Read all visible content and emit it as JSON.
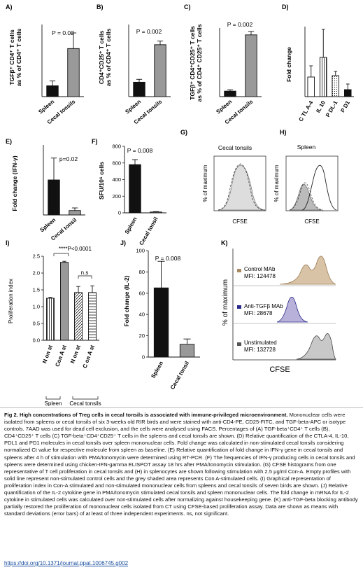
{
  "figure": {
    "panels": {
      "A": {
        "label": "A)",
        "ylabel_line1": "TGFβ⁺ CD4⁺ T cells",
        "ylabel_line2": "as % of CD4⁺ T cells",
        "pvalue": "P = 0.02"
      },
      "B": {
        "label": "B)",
        "ylabel_line1": "CD4⁺CD25⁺ T cells",
        "ylabel_line2": "as % of CD4⁺ T cells",
        "pvalue": "P = 0.002"
      },
      "C": {
        "label": "C)",
        "ylabel_line1": "TGFβ⁺ CD4⁺CD25⁺ T cells",
        "ylabel_line2": "as % of CD4⁺ CD25⁺ T cells",
        "pvalue": "P = 0.002"
      },
      "D": {
        "label": "D)",
        "ylabel": "Fold change"
      },
      "E": {
        "label": "E)",
        "ylabel": "Fold change (IFN-γ)",
        "pvalue": "p=0.02"
      },
      "F": {
        "label": "F)",
        "ylabel": "SFU/10⁶ cells",
        "pvalue": "P = 0.008"
      },
      "G": {
        "label": "G)",
        "title": "Cecal tonsils",
        "ylabel": "% of maximum",
        "xlabel": "CFSE"
      },
      "H": {
        "label": "H)",
        "title": "Spleen",
        "ylabel": "% of maximum",
        "xlabel": "CFSE"
      },
      "I": {
        "label": "I)",
        "ylabel": "Proliferation index",
        "sig1": "****P<0.0001",
        "sig2": "n.s",
        "group1": "Spleen",
        "group2": "Cecal tonsils"
      },
      "J": {
        "label": "J)",
        "ylabel": "Fold change (IL-2)",
        "pvalue": "P = 0.008"
      },
      "K": {
        "label": "K)",
        "ylabel": "% of maximum",
        "xlabel": "CFSE",
        "legend": [
          {
            "name": "Control MAb",
            "mfi": "MFI: 124478",
            "color": "#a88a62"
          },
          {
            "name": "Anti-TGFβ MAb",
            "mfi": "MFI: 28678",
            "color": "#2a2a8a"
          },
          {
            "name": "Unstimulated",
            "mfi": "MFI: 132728",
            "color": "#444444"
          }
        ]
      }
    }
  },
  "chart_data": [
    {
      "panel": "A",
      "type": "bar",
      "categories": [
        "Spleen",
        "Cecal tonsils"
      ],
      "values": [
        9,
        40
      ],
      "errors": [
        4,
        13
      ],
      "ylim": [
        0,
        60
      ]
    },
    {
      "panel": "B",
      "type": "bar",
      "categories": [
        "Spleen",
        "Cecal tonsils"
      ],
      "values": [
        20,
        72
      ],
      "errors": [
        4,
        5
      ],
      "ylim": [
        0,
        100
      ]
    },
    {
      "panel": "C",
      "type": "bar",
      "categories": [
        "Spleen",
        "Cecal tonsils"
      ],
      "values": [
        8,
        90
      ],
      "errors": [
        2,
        5
      ],
      "ylim": [
        0,
        100
      ]
    },
    {
      "panel": "D",
      "type": "bar",
      "categories": [
        "C TL A-4",
        "IL 10",
        "P DL-1",
        "P D1"
      ],
      "values": [
        1.4,
        2.8,
        1.5,
        0.5
      ],
      "errors": [
        0.8,
        2.0,
        0.3,
        0.4
      ],
      "ylim": [
        0,
        5
      ]
    },
    {
      "panel": "E",
      "type": "bar",
      "categories": [
        "Spleen",
        "Cecal tonsil"
      ],
      "values": [
        4.0,
        0.5
      ],
      "errors": [
        2.5,
        0.3
      ],
      "ylim": [
        0,
        8
      ]
    },
    {
      "panel": "F",
      "type": "bar",
      "yticks": [
        0,
        200,
        400,
        600,
        800
      ],
      "categories": [
        "Spleen",
        "Cecal tonsil"
      ],
      "values": [
        580,
        10
      ],
      "errors": [
        60,
        5
      ],
      "ylim": [
        0,
        800
      ]
    },
    {
      "panel": "I",
      "type": "bar",
      "yticks": [
        0.0,
        0.5,
        1.0,
        1.5,
        2.0,
        2.5
      ],
      "categories": [
        "N on st",
        "Con A st",
        "N on st",
        "C on A st"
      ],
      "values": [
        1.25,
        2.32,
        1.42,
        1.42
      ],
      "errors": [
        0.03,
        0.03,
        0.18,
        0.2
      ],
      "ylim": [
        0,
        2.5
      ]
    },
    {
      "panel": "J",
      "type": "bar",
      "yticks": [
        0,
        20,
        40,
        60,
        80,
        100
      ],
      "categories": [
        "Spleen",
        "Cecal tonsil"
      ],
      "values": [
        65,
        12
      ],
      "errors": [
        25,
        5
      ],
      "ylim": [
        0,
        100
      ]
    }
  ],
  "caption": {
    "title": "Fig 2. High concentrations of Treg cells in cecal tonsils is associated with immune-privileged microenvironment.",
    "body": "Mononuclear cells were isolated from spleens or cecal tonsils of six 3-weeks old RIR birds and were stained with anti-CD4-PE, CD25-FITC, and TGF-beta-APC or isotype controls. 7AAD was used for dead cell exclusion, and the cells were analysed using FACS. Percentages of (A) TGF-beta⁺CD4⁺ T cells (B), CD4⁺CD25⁺ T cells (C) TGF-beta⁺CD4⁺CD25⁺ T cells in the spleens and cecal tonsils are shown. (D) Relative quantification of the CTLA-4, IL-10, PDL1 and PD1 molecules in cecal tonsils over spleen mononuclear cells. Fold change was calculated in non-stimulated cecal tonsils considering normalized Ct value for respective molecule from spleen as baseline. (E) Relative quantification of fold change in IFN-γ gene in cecal tonsils and spleens after 4 h of stimulation with PMA/Ionomycin were determined using RT-PCR. (F) The frequencies of IFN-γ producing cells in cecal tonsils and spleens were determined using chicken-IFN-gamma ELISPOT assay 18 hrs after PMA/Ionomycin stimulation. (G) CFSE histograms from one representative of T cell proliferation in cecal tonsils and (H) in splenocytes are shown following stimulation with 2.5 μg/ml Con-A. Empty profiles with solid line represent non-stimulated control cells and the grey shaded area represents Con A-stimulated cells. (I) Graphical representation of proliferation index in Con-A stimulated and non-stimulated mononuclear cells from spleens and cecal tonsils of seven birds are shown. (J) Relative quantification of the IL-2 cytokine gene in PMA/Ionomycin stimulated cecal tonsils and spleen mononuclear cells. The fold change in mRNA for IL-2 cytokine in stimulated cells was calculated over non-stimulated cells after normalizing against housekeeping gene. (K) anti-TGF-beta blocking antibody partially restored the proliferation of mononuclear cells isolated from CT using CFSE-based proliferation assay. Data are shown as means with standard deviations (error bars) of at least of three independent experiments. ns, not significant.",
    "doi": "https://doi.org/10.1371/journal.ppat.1006745.g002"
  }
}
